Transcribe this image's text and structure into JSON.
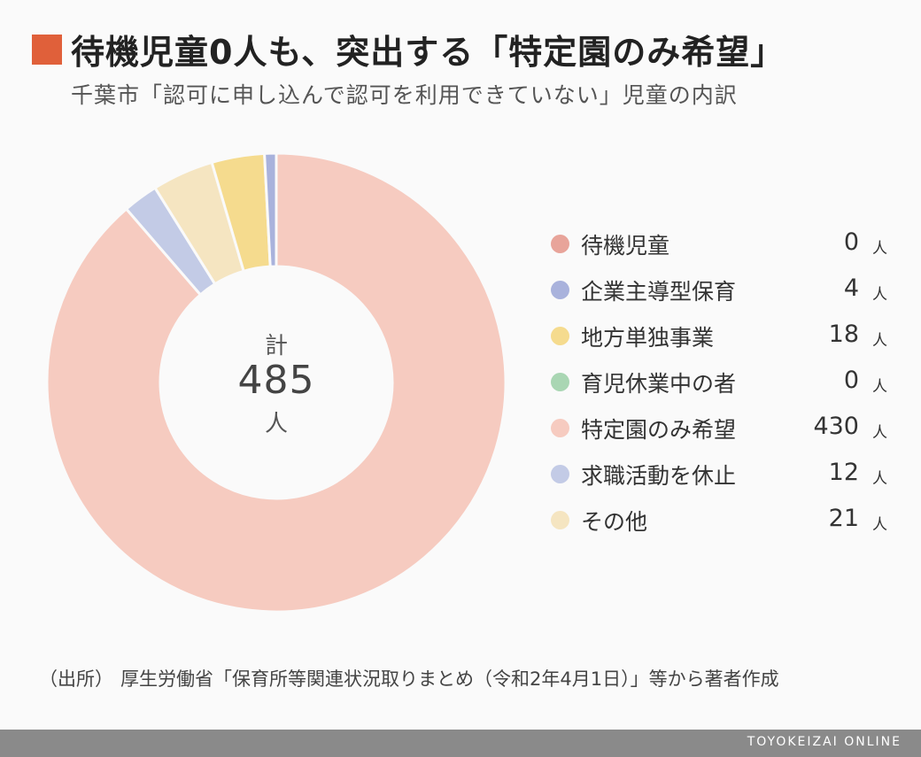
{
  "title": "待機児童0人も、突出する「特定園のみ希望」",
  "subtitle": "千葉市「認可に申し込んで認可を利用できていない」児童の内訳",
  "center": {
    "label": "計",
    "value": "485",
    "unit": "人"
  },
  "colors": {
    "title_square": "#e0603a"
  },
  "chart_data": {
    "type": "pie",
    "style": "donut",
    "total": 485,
    "unit": "人",
    "categories": [
      "待機児童",
      "企業主導型保育",
      "地方単独事業",
      "育児休業中の者",
      "特定園のみ希望",
      "求職活動を休止",
      "その他"
    ],
    "values": [
      0,
      4,
      18,
      0,
      430,
      12,
      21
    ],
    "colors": [
      "#e8a49a",
      "#a9b2dc",
      "#f5db8e",
      "#a9d6b3",
      "#f6cbc0",
      "#c3cbe6",
      "#f5e5c1"
    ],
    "legend_placement": "right"
  },
  "legend": [
    {
      "label": "待機児童",
      "value": "0",
      "unit": "人"
    },
    {
      "label": "企業主導型保育",
      "value": "4",
      "unit": "人"
    },
    {
      "label": "地方単独事業",
      "value": "18",
      "unit": "人"
    },
    {
      "label": "育児休業中の者",
      "value": "0",
      "unit": "人"
    },
    {
      "label": "特定園のみ希望",
      "value": "430",
      "unit": "人"
    },
    {
      "label": "求職活動を休止",
      "value": "12",
      "unit": "人"
    },
    {
      "label": "その他",
      "value": "21",
      "unit": "人"
    }
  ],
  "source": {
    "label": "（出所）",
    "text": "厚生労働省「保育所等関連状況取りまとめ（令和2年4月1日）」等から著者作成"
  },
  "footer": {
    "brand": "TOYOKEIZAI ONLINE"
  }
}
